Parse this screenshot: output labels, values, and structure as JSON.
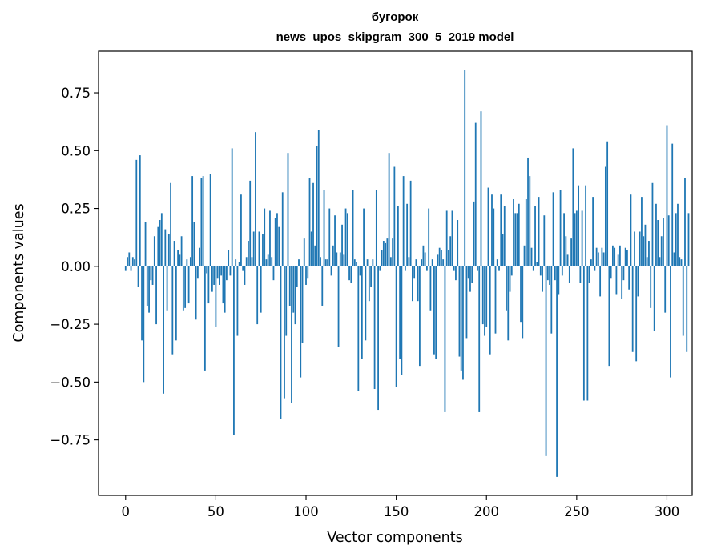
{
  "chart_data": {
    "type": "bar",
    "title": "бугорок",
    "subtitle": "news_upos_skipgram_300_5_2019 model",
    "xlabel": "Vector components",
    "ylabel": "Components values",
    "xlim": [
      -15,
      314
    ],
    "ylim": [
      -0.99,
      0.93
    ],
    "xticks": [
      0,
      50,
      100,
      150,
      200,
      250,
      300
    ],
    "yticks": [
      -0.75,
      -0.5,
      -0.25,
      0.0,
      0.25,
      0.5,
      0.75
    ],
    "ytick_labels": [
      "−0.75",
      "−0.50",
      "−0.25",
      "0.00",
      "0.25",
      "0.50",
      "0.75"
    ],
    "bar_color": "#1f77b4",
    "grid": false,
    "values": [
      -0.02,
      0.04,
      0.06,
      -0.02,
      0.04,
      0.03,
      0.46,
      -0.09,
      0.48,
      -0.32,
      -0.5,
      0.19,
      -0.17,
      -0.2,
      -0.06,
      -0.08,
      0.13,
      -0.25,
      0.17,
      0.2,
      0.23,
      -0.55,
      0.16,
      -0.19,
      0.14,
      0.36,
      -0.38,
      0.11,
      -0.32,
      0.07,
      0.05,
      0.13,
      -0.19,
      -0.18,
      0.03,
      -0.16,
      0.04,
      0.39,
      0.19,
      -0.23,
      -0.05,
      0.08,
      0.38,
      0.39,
      -0.45,
      -0.03,
      -0.16,
      0.4,
      -0.11,
      -0.08,
      -0.26,
      -0.05,
      -0.08,
      -0.04,
      -0.16,
      -0.2,
      -0.06,
      0.07,
      -0.04,
      0.51,
      -0.73,
      0.03,
      -0.3,
      0.02,
      0.31,
      -0.02,
      -0.08,
      0.04,
      0.11,
      0.37,
      0.04,
      0.15,
      0.58,
      -0.25,
      0.15,
      -0.2,
      0.14,
      0.25,
      0.03,
      0.05,
      0.24,
      0.04,
      -0.06,
      0.21,
      0.23,
      0.17,
      -0.66,
      0.32,
      -0.57,
      -0.3,
      0.49,
      -0.17,
      -0.59,
      -0.2,
      -0.25,
      -0.09,
      0.03,
      -0.48,
      -0.33,
      0.12,
      -0.08,
      -0.05,
      0.38,
      0.15,
      0.36,
      0.09,
      0.52,
      0.59,
      0.04,
      -0.17,
      0.33,
      0.03,
      0.03,
      0.25,
      -0.04,
      0.09,
      0.22,
      0.06,
      -0.35,
      0.06,
      0.18,
      0.05,
      0.25,
      0.23,
      -0.06,
      -0.07,
      0.33,
      0.03,
      0.02,
      -0.54,
      -0.04,
      -0.4,
      0.25,
      -0.32,
      0.03,
      -0.15,
      -0.09,
      0.03,
      -0.53,
      0.33,
      -0.62,
      -0.02,
      0.07,
      0.11,
      0.1,
      0.12,
      0.49,
      0.04,
      0.12,
      0.43,
      -0.52,
      0.26,
      -0.4,
      -0.47,
      0.39,
      -0.02,
      0.27,
      0.04,
      0.37,
      -0.15,
      -0.05,
      0.03,
      -0.15,
      -0.43,
      0.03,
      0.09,
      0.06,
      -0.02,
      0.25,
      -0.19,
      0.03,
      -0.38,
      -0.4,
      0.05,
      0.08,
      0.07,
      0.03,
      -0.63,
      0.24,
      0.07,
      0.13,
      0.24,
      -0.02,
      -0.06,
      0.2,
      -0.39,
      -0.45,
      -0.49,
      0.85,
      -0.31,
      -0.05,
      -0.11,
      -0.07,
      0.28,
      0.62,
      -0.02,
      -0.63,
      0.67,
      -0.25,
      -0.3,
      -0.26,
      0.34,
      -0.38,
      0.31,
      0.25,
      -0.29,
      0.03,
      -0.02,
      0.31,
      0.14,
      0.26,
      -0.19,
      -0.32,
      -0.11,
      -0.04,
      0.29,
      0.23,
      0.23,
      0.27,
      -0.24,
      -0.31,
      0.09,
      0.29,
      0.47,
      0.39,
      0.08,
      -0.02,
      0.26,
      0.02,
      0.3,
      -0.04,
      -0.11,
      0.22,
      -0.82,
      -0.06,
      -0.08,
      -0.29,
      0.32,
      -0.06,
      -0.91,
      -0.12,
      0.33,
      -0.04,
      0.23,
      0.13,
      0.05,
      -0.07,
      0.12,
      0.51,
      0.23,
      0.24,
      0.35,
      -0.07,
      0.24,
      -0.58,
      0.35,
      -0.58,
      -0.07,
      0.03,
      0.3,
      -0.02,
      0.08,
      0.06,
      -0.13,
      0.08,
      0.06,
      0.43,
      0.54,
      -0.43,
      -0.05,
      0.09,
      0.08,
      -0.12,
      0.05,
      0.09,
      -0.14,
      -0.06,
      0.08,
      0.07,
      -0.1,
      0.31,
      -0.37,
      0.15,
      -0.41,
      -0.13,
      0.15,
      0.3,
      0.13,
      0.18,
      0.04,
      0.11,
      -0.18,
      0.36,
      -0.28,
      0.27,
      0.2,
      0.04,
      0.13,
      0.21,
      -0.2,
      0.61,
      0.22,
      -0.48,
      0.53,
      0.06,
      0.23,
      0.27,
      0.04,
      0.03,
      -0.3,
      0.38,
      -0.37,
      0.23
    ]
  }
}
